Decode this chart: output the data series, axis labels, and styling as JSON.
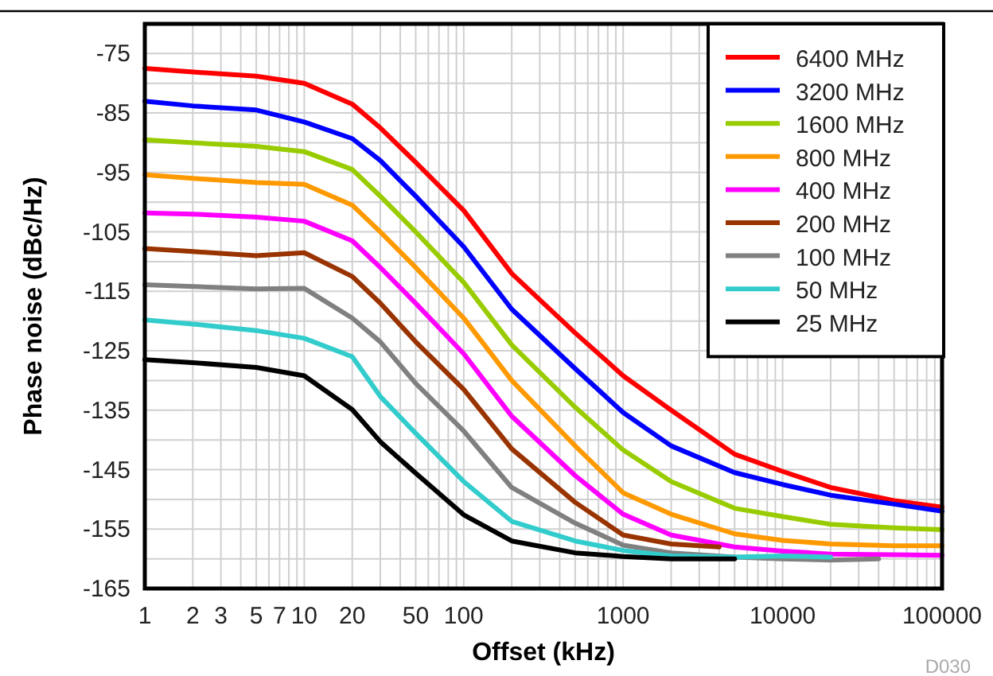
{
  "chart_data": {
    "type": "line",
    "xlabel": "Offset (kHz)",
    "ylabel": "Phase noise (dBc/Hz)",
    "log": "x",
    "grid": true,
    "legend": "top right",
    "xlim": [
      1,
      100000
    ],
    "ylim": [
      -165,
      -70
    ],
    "xticks": [
      1,
      2,
      3,
      {
        "value": 4,
        "label": null
      },
      5,
      {
        "value": 6,
        "label": null
      },
      7,
      {
        "value": 8,
        "label": null
      },
      {
        "value": 9,
        "label": null
      },
      10,
      20,
      {
        "value": 30,
        "label": null
      },
      {
        "value": 40,
        "label": null
      },
      50,
      {
        "value": 60,
        "label": null
      },
      {
        "value": 70,
        "label": null
      },
      {
        "value": 80,
        "label": null
      },
      {
        "value": 90,
        "label": null
      },
      100,
      {
        "value": 200,
        "label": null
      },
      {
        "value": 300,
        "label": null
      },
      {
        "value": 400,
        "label": null
      },
      {
        "value": 500,
        "label": null
      },
      {
        "value": 600,
        "label": null
      },
      {
        "value": 700,
        "label": null
      },
      {
        "value": 800,
        "label": null
      },
      {
        "value": 900,
        "label": null
      },
      1000,
      {
        "value": 2000,
        "label": null
      },
      {
        "value": 3000,
        "label": null
      },
      {
        "value": 4000,
        "label": null
      },
      {
        "value": 5000,
        "label": null
      },
      {
        "value": 6000,
        "label": null
      },
      {
        "value": 7000,
        "label": null
      },
      {
        "value": 8000,
        "label": null
      },
      {
        "value": 9000,
        "label": null
      },
      10000,
      {
        "value": 20000,
        "label": null
      },
      {
        "value": 30000,
        "label": null
      },
      {
        "value": 40000,
        "label": null
      },
      {
        "value": 50000,
        "label": null
      },
      {
        "value": 60000,
        "label": null
      },
      {
        "value": 70000,
        "label": null
      },
      {
        "value": 80000,
        "label": null
      },
      {
        "value": 90000,
        "label": null
      },
      100000
    ],
    "yticks": [
      {
        "value": -70,
        "label": null
      },
      -75,
      {
        "value": -80,
        "label": null
      },
      -85,
      {
        "value": -90,
        "label": null
      },
      -95,
      {
        "value": -100,
        "label": null
      },
      -105,
      {
        "value": -110,
        "label": null
      },
      -115,
      {
        "value": -120,
        "label": null
      },
      -125,
      {
        "value": -130,
        "label": null
      },
      -135,
      {
        "value": -140,
        "label": null
      },
      -145,
      {
        "value": -150,
        "label": null
      },
      -155,
      {
        "value": -160,
        "label": null
      },
      -165
    ],
    "series": [
      {
        "name": "6400 MHz",
        "color": "#ff0000",
        "x": [
          1,
          2,
          5,
          10,
          20,
          30,
          50,
          100,
          200,
          500,
          1000,
          2000,
          5000,
          10000,
          20000,
          50000,
          100000
        ],
        "values": [
          -77.5,
          -78.1,
          -78.8,
          -80,
          -83.5,
          -87.5,
          -93.3,
          -101.4,
          -112,
          -122,
          -129.2,
          -135,
          -142.4,
          -145.3,
          -148,
          -150.2,
          -151.3
        ]
      },
      {
        "name": "3200 MHz",
        "color": "#0000ff",
        "x": [
          1,
          2,
          5,
          10,
          20,
          30,
          50,
          100,
          200,
          500,
          1000,
          2000,
          5000,
          10000,
          20000,
          50000,
          100000
        ],
        "values": [
          -83,
          -83.8,
          -84.5,
          -86.5,
          -89.3,
          -93,
          -99,
          -107.5,
          -118,
          -128,
          -135.4,
          -141,
          -145.5,
          -147.5,
          -149.3,
          -150.8,
          -152
        ]
      },
      {
        "name": "1600 MHz",
        "color": "#99cc00",
        "x": [
          1,
          2,
          5,
          10,
          20,
          30,
          50,
          100,
          200,
          500,
          1000,
          2000,
          5000,
          10000,
          20000,
          50000,
          100000
        ],
        "values": [
          -89.5,
          -90,
          -90.6,
          -91.5,
          -94.5,
          -99,
          -105,
          -113.5,
          -124,
          -134.5,
          -141.7,
          -147,
          -151.5,
          -152.9,
          -154.2,
          -154.8,
          -155.1
        ]
      },
      {
        "name": "800 MHz",
        "color": "#ff9900",
        "x": [
          1,
          2,
          5,
          10,
          20,
          30,
          50,
          100,
          200,
          500,
          1000,
          2000,
          5000,
          10000,
          20000,
          50000,
          100000
        ],
        "values": [
          -95.4,
          -96,
          -96.7,
          -97,
          -100.5,
          -105,
          -111,
          -119.5,
          -130,
          -141,
          -148.9,
          -152.5,
          -155.8,
          -156.9,
          -157.5,
          -157.8,
          -157.8
        ]
      },
      {
        "name": "400 MHz",
        "color": "#ff00ff",
        "x": [
          1,
          2,
          5,
          10,
          20,
          30,
          50,
          100,
          200,
          500,
          1000,
          2000,
          5000,
          10000,
          20000,
          50000,
          100000
        ],
        "values": [
          -101.8,
          -102,
          -102.5,
          -103.2,
          -106.5,
          -111,
          -117,
          -125.5,
          -136,
          -146,
          -152.5,
          -156,
          -158,
          -158.7,
          -159.2,
          -159.3,
          -159.4
        ]
      },
      {
        "name": "200 MHz",
        "color": "#993300",
        "x": [
          1,
          2,
          5,
          10,
          20,
          30,
          50,
          100,
          200,
          500,
          1000,
          2000,
          4000
        ],
        "values": [
          -107.8,
          -108.3,
          -109,
          -108.5,
          -112.5,
          -117,
          -123.5,
          -131.5,
          -141.5,
          -150.5,
          -156,
          -157.5,
          -158
        ]
      },
      {
        "name": "100 MHz",
        "color": "#808080",
        "x": [
          1,
          2,
          5,
          10,
          20,
          30,
          50,
          100,
          200,
          500,
          1000,
          2000,
          5000,
          10000,
          20000,
          40000
        ],
        "values": [
          -113.9,
          -114.2,
          -114.6,
          -114.5,
          -119.5,
          -123.5,
          -130.5,
          -138.5,
          -148,
          -154,
          -157.7,
          -159,
          -159.7,
          -160,
          -160.2,
          -160
        ]
      },
      {
        "name": "50 MHz",
        "color": "#33cccc",
        "x": [
          1,
          2,
          5,
          10,
          20,
          30,
          50,
          100,
          200,
          500,
          1000,
          2000,
          5000,
          10000,
          20000
        ],
        "values": [
          -119.8,
          -120.5,
          -121.6,
          -122.9,
          -126,
          -132.7,
          -138.9,
          -147,
          -153.7,
          -157,
          -158.6,
          -159.5,
          -159.7,
          -159.5,
          -159.7
        ]
      },
      {
        "name": "25 MHz",
        "color": "#000000",
        "x": [
          1,
          2,
          5,
          10,
          20,
          30,
          50,
          100,
          200,
          500,
          1000,
          2000,
          5000
        ],
        "values": [
          -126.5,
          -127,
          -127.8,
          -129.2,
          -134.9,
          -140.3,
          -145.6,
          -152.6,
          -157,
          -159,
          -159.6,
          -160,
          -160
        ]
      }
    ],
    "annotations": [
      "D030"
    ]
  }
}
